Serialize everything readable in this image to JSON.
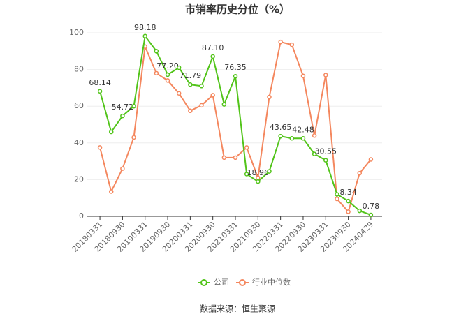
{
  "chart_data": {
    "type": "line",
    "title": "市销率历史分位（%）",
    "categories": [
      "20180331",
      null,
      "20180930",
      null,
      "20190331",
      null,
      "20190930",
      null,
      "20200331",
      null,
      "20200930",
      null,
      "20210331",
      null,
      "20210930",
      null,
      "20220331",
      null,
      "20220930",
      null,
      "20230331",
      null,
      "20230930",
      null,
      "20240429"
    ],
    "series": [
      {
        "name": "公司",
        "color": "#52c41a",
        "values": [
          68.14,
          46,
          54.72,
          60,
          98.18,
          90,
          77.2,
          81,
          71.79,
          71,
          87.1,
          61,
          76.35,
          23,
          18.96,
          24.5,
          43.65,
          42.5,
          42.48,
          34,
          30.55,
          12,
          8.34,
          3,
          0.78
        ],
        "value_labels": [
          "68.14",
          null,
          "54.72",
          null,
          "98.18",
          null,
          "77.20",
          null,
          "71.79",
          null,
          "87.10",
          null,
          "76.35",
          null,
          "18.96",
          null,
          "43.65",
          null,
          "42.48",
          null,
          "30.55",
          null,
          "8.34",
          null,
          "0.78"
        ]
      },
      {
        "name": "行业中位数",
        "color": "#f4875e",
        "values": [
          37.5,
          13.5,
          26,
          43,
          92.5,
          78,
          74,
          67,
          57.5,
          60.5,
          66,
          32,
          32,
          37.5,
          21,
          65,
          95,
          93.5,
          76.5,
          44,
          77,
          9.5,
          2.5,
          23.5,
          31
        ]
      }
    ],
    "ylim": [
      0,
      100
    ],
    "yticks": [
      0,
      20,
      40,
      60,
      80,
      100
    ],
    "grid": true,
    "legend": "bottom",
    "source": "数据来源：恒生聚源"
  }
}
